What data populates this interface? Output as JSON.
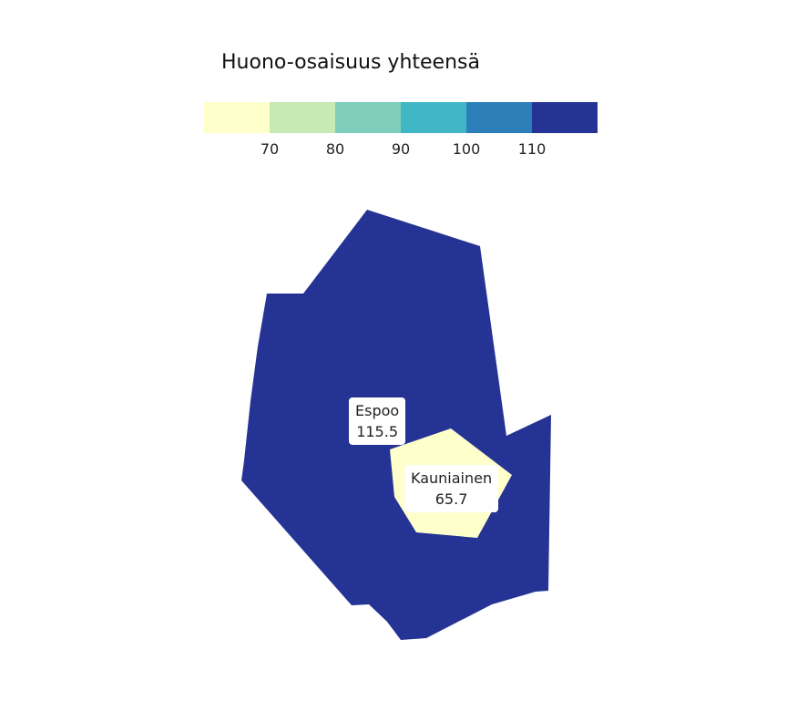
{
  "legend": {
    "title": "Huono-osaisuus yhteensä",
    "colors": [
      "#ffffcc",
      "#c7e9b4",
      "#7fcdbb",
      "#41b6c4",
      "#2c7fb8",
      "#253494"
    ],
    "ticks": [
      "70",
      "80",
      "90",
      "100",
      "110"
    ]
  },
  "regions": [
    {
      "name": "Espoo",
      "value": "115.5",
      "color": "#253494"
    },
    {
      "name": "Kauniainen",
      "value": "65.7",
      "color": "#ffffcc"
    }
  ]
}
